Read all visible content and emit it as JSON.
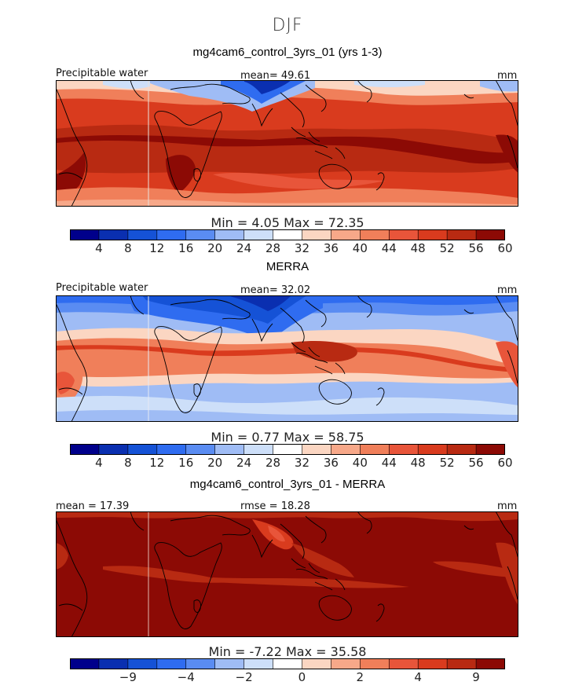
{
  "figure": {
    "title": "DJF"
  },
  "colors": {
    "palette": [
      "#00008b",
      "#0a2fb0",
      "#1552d6",
      "#2f6cf0",
      "#5a8cf2",
      "#9fbcf5",
      "#cddff9",
      "#ffffff",
      "#fbd6c2",
      "#f7a889",
      "#f07f5a",
      "#e8553a",
      "#d93b1e",
      "#b82a12",
      "#8c0a05"
    ],
    "land": "#000000"
  },
  "panels": [
    {
      "title": "mg4cam6_control_3yrs_01 (yrs 1-3)",
      "left_label": "Precipitable water",
      "center_label": "mean=  49.61",
      "units": "mm",
      "min_max": "Min =    4.05  Max =   72.35"
    },
    {
      "title": "MERRA",
      "left_label": "Precipitable water",
      "center_label": "mean=  32.02",
      "units": "mm",
      "min_max": "Min =    0.77  Max =   58.75"
    },
    {
      "title": "mg4cam6_control_3yrs_01 - MERRA",
      "left_label": "mean =  17.39",
      "center_label": "rmse =  18.28",
      "units": "mm",
      "min_max": "Min =   -7.22  Max =   35.58"
    }
  ],
  "chart_data": [
    {
      "type": "heatmap",
      "title": "mg4cam6_control_3yrs_01 (yrs 1-3)",
      "variable": "Precipitable water",
      "units": "mm",
      "mean": 49.61,
      "min": 4.05,
      "max": 72.35,
      "colorbar_levels": [
        4,
        8,
        12,
        16,
        20,
        24,
        28,
        32,
        36,
        40,
        44,
        48,
        52,
        56,
        60
      ],
      "colorbar_labels": [
        "4",
        "8",
        "12",
        "16",
        "20",
        "24",
        "28",
        "32",
        "36",
        "40",
        "44",
        "48",
        "52",
        "56",
        "60"
      ]
    },
    {
      "type": "heatmap",
      "title": "MERRA",
      "variable": "Precipitable water",
      "units": "mm",
      "mean": 32.02,
      "min": 0.77,
      "max": 58.75,
      "colorbar_levels": [
        4,
        8,
        12,
        16,
        20,
        24,
        28,
        32,
        36,
        40,
        44,
        48,
        52,
        56,
        60
      ],
      "colorbar_labels": [
        "4",
        "8",
        "12",
        "16",
        "20",
        "24",
        "28",
        "32",
        "36",
        "40",
        "44",
        "48",
        "52",
        "56",
        "60"
      ]
    },
    {
      "type": "heatmap",
      "title": "mg4cam6_control_3yrs_01 - MERRA",
      "units": "mm",
      "mean": 17.39,
      "rmse": 18.28,
      "min": -7.22,
      "max": 35.58,
      "colorbar_levels": [
        -9,
        -6,
        -4,
        -3,
        -2,
        -1,
        0,
        1,
        2,
        3,
        4,
        6,
        9
      ],
      "colorbar_labels": [
        "−9",
        "−4",
        "−2",
        "0",
        "2",
        "4",
        "9"
      ]
    }
  ]
}
